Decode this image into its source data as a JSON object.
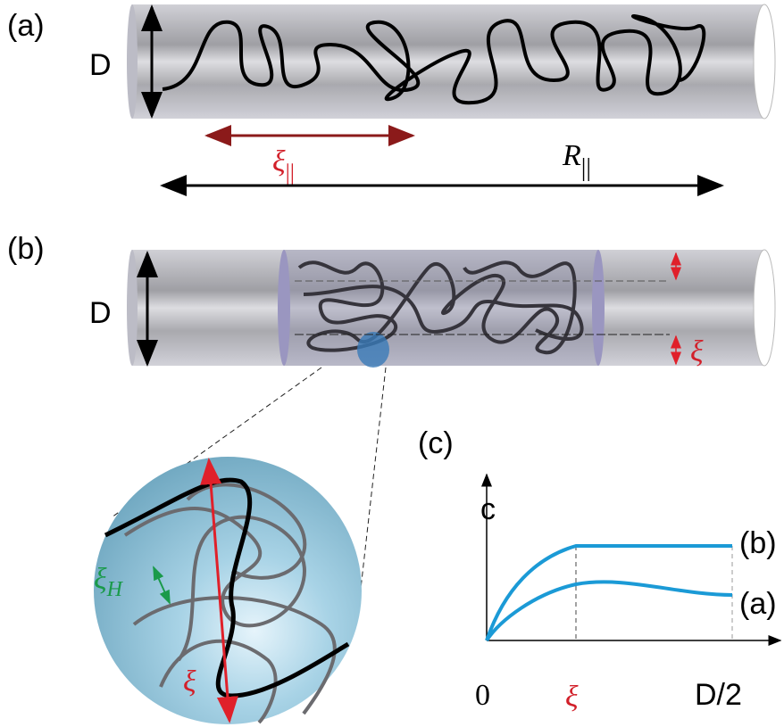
{
  "panels": {
    "a": {
      "label": "(a)",
      "diameter": "D",
      "xi": {
        "symbol": "ξ",
        "subscript": "||"
      },
      "r": {
        "symbol": "R",
        "subscript": "||"
      }
    },
    "b": {
      "label": "(b)",
      "diameter": "D",
      "xi": "ξ",
      "inset": {
        "xi_h": {
          "symbol": "ξ",
          "subscript": "H"
        },
        "xi": "ξ"
      }
    },
    "c": {
      "label": "(c)",
      "y_label": "c",
      "curve_b": "(b)",
      "curve_a": "(a)",
      "x_labels": [
        "0",
        "ξ",
        "D/2"
      ]
    }
  }
}
